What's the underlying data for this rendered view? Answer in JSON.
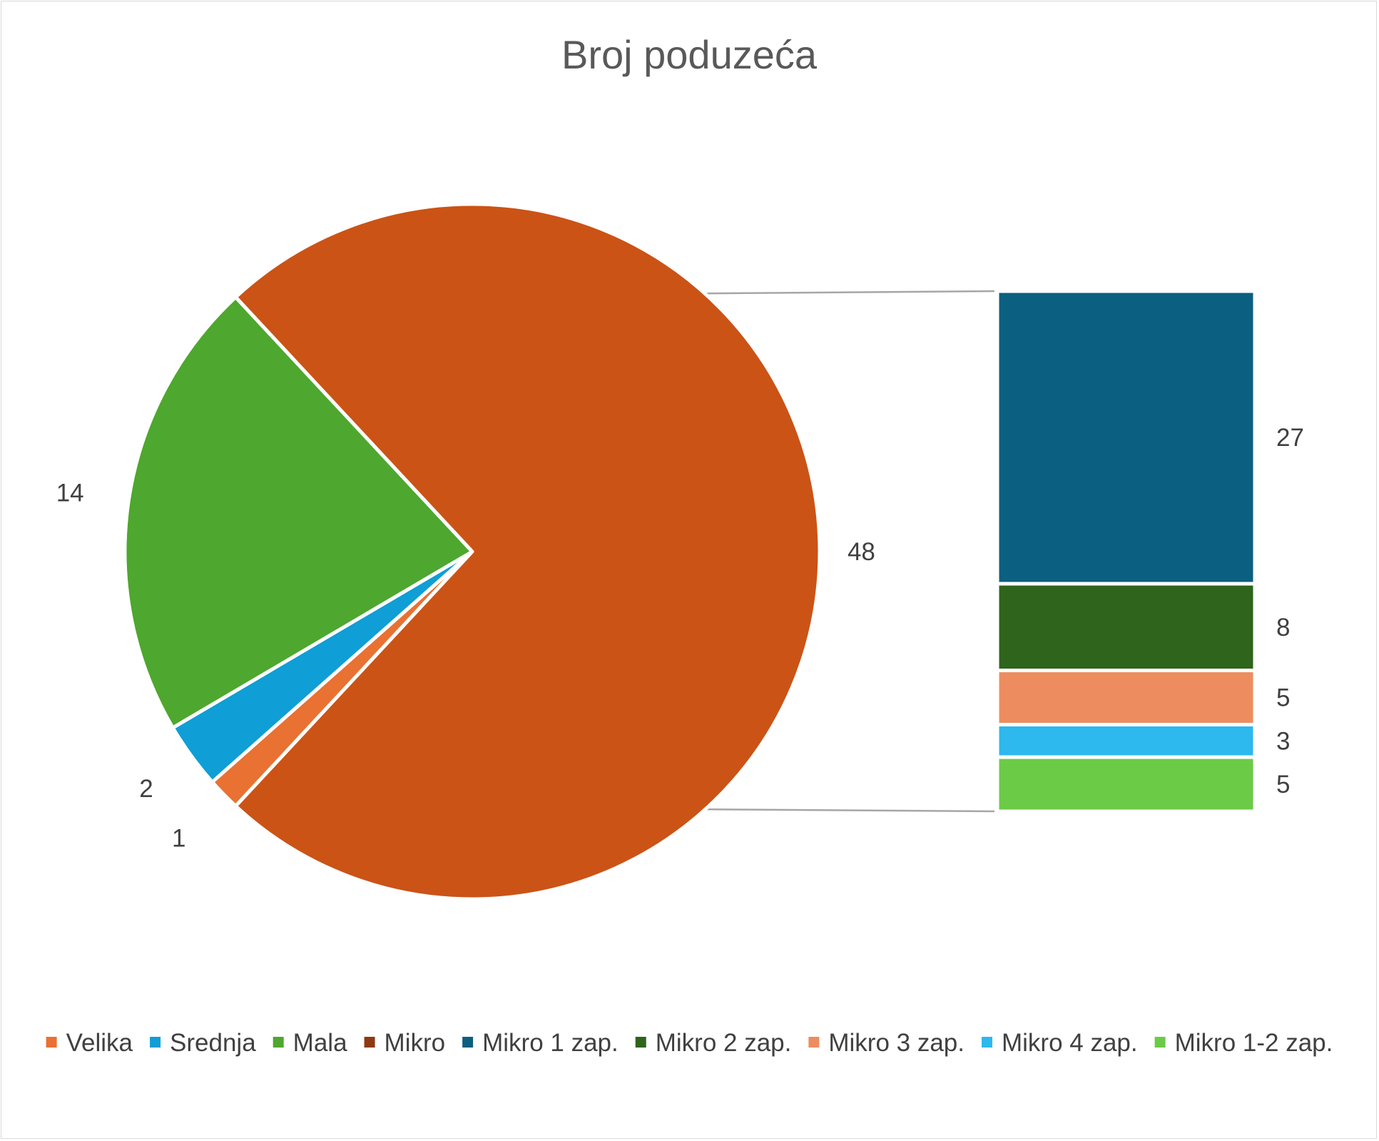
{
  "chart_data": {
    "type": "pie",
    "subtype": "bar-of-pie",
    "title": "Broj poduzeća",
    "pie": {
      "slices": [
        {
          "name": "Velika",
          "value": 1,
          "color": "#E97132"
        },
        {
          "name": "Srednja",
          "value": 2,
          "color": "#0F9ED5"
        },
        {
          "name": "Mala",
          "value": 14,
          "color": "#4EA72E"
        },
        {
          "name": "Mikro",
          "value": 48,
          "color": "#CB5316"
        }
      ]
    },
    "bar": {
      "parent": "Mikro",
      "segments": [
        {
          "name": "Mikro 1 zap.",
          "value": 27,
          "color": "#0B5F80"
        },
        {
          "name": "Mikro 2 zap.",
          "value": 8,
          "color": "#2E641C"
        },
        {
          "name": "Mikro 3 zap.",
          "value": 5,
          "color": "#ED8D5F"
        },
        {
          "name": "Mikro 4 zap.",
          "value": 3,
          "color": "#2DB8EE"
        },
        {
          "name": "Mikro 1-2 zap.",
          "value": 5,
          "color": "#6BCB47"
        }
      ]
    },
    "legend": {
      "position": "bottom",
      "entries": [
        {
          "label": "Velika",
          "color": "#E97132"
        },
        {
          "label": "Srednja",
          "color": "#0F9ED5"
        },
        {
          "label": "Mala",
          "color": "#4EA72E"
        },
        {
          "label": "Mikro",
          "color": "#8E3A10"
        },
        {
          "label": "Mikro 1 zap.",
          "color": "#0B5F80"
        },
        {
          "label": "Mikro 2 zap.",
          "color": "#2E641C"
        },
        {
          "label": "Mikro 3 zap.",
          "color": "#ED8D5F"
        },
        {
          "label": "Mikro 4 zap.",
          "color": "#2DB8EE"
        },
        {
          "label": "Mikro 1-2 zap.",
          "color": "#6BCB47"
        }
      ]
    },
    "connector_color": "#A6A6A6"
  }
}
